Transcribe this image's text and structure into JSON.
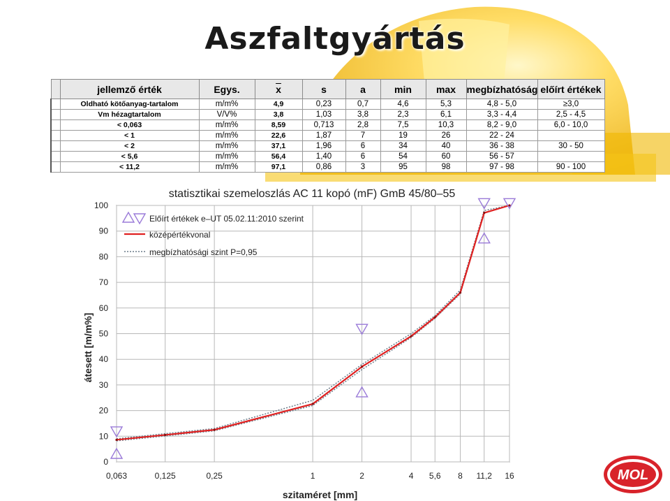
{
  "slide": {
    "title": "Aszfaltgyártás",
    "logo_text": "MOL"
  },
  "table": {
    "headers": [
      "jellemző érték",
      "Egys.",
      "x",
      "s",
      "a",
      "min",
      "max",
      "megbízhatóság",
      "előírt értékek"
    ],
    "rows": [
      [
        "Oldható kötőanyag-tartalom",
        "m/m%",
        "4,9",
        "0,23",
        "0,7",
        "4,6",
        "5,3",
        "4,8 - 5,0",
        "≥3,0"
      ],
      [
        "Vm hézagtartalom",
        "V/V%",
        "3,8",
        "1,03",
        "3,8",
        "2,3",
        "6,1",
        "3,3 - 4,4",
        "2,5 - 4,5"
      ],
      [
        "< 0,063",
        "m/m%",
        "8,59",
        "0,713",
        "2,8",
        "7,5",
        "10,3",
        "8,2 - 9,0",
        "6,0 - 10,0"
      ],
      [
        "< 1",
        "m/m%",
        "22,6",
        "1,87",
        "7",
        "19",
        "26",
        "22 - 24",
        ""
      ],
      [
        "< 2",
        "m/m%",
        "37,1",
        "1,96",
        "6",
        "34",
        "40",
        "36 - 38",
        "30 - 50"
      ],
      [
        "< 5,6",
        "m/m%",
        "56,4",
        "1,40",
        "6",
        "54",
        "60",
        "56 - 57",
        ""
      ],
      [
        "< 11,2",
        "m/m%",
        "97,1",
        "0,86",
        "3",
        "95",
        "98",
        "97 - 98",
        "90 - 100"
      ]
    ]
  },
  "chart_data": {
    "type": "line",
    "title": "statisztikai szemeloszlás AC 11 kopó (mF) GmB 45/80–55",
    "xlabel": "szitaméret [mm]",
    "ylabel": "átesett [m/m%]",
    "x_scale": "log",
    "x": [
      0.063,
      0.125,
      0.25,
      1,
      2,
      4,
      5.6,
      8,
      11.2,
      16
    ],
    "xticks": [
      "0,063",
      "0,125",
      "0,25",
      "1",
      "2",
      "4",
      "5,6",
      "8",
      "11,2",
      "16"
    ],
    "ylim": [
      0,
      100
    ],
    "yticks": [
      0,
      10,
      20,
      30,
      40,
      50,
      60,
      70,
      80,
      90,
      100
    ],
    "grid": true,
    "legend": "top-left",
    "colors": {
      "mean": "#e02020",
      "reliability": "#6a7a88",
      "spec": "#9a7ad8",
      "grid": "#b8b8b8"
    },
    "series": [
      {
        "name": "középértékvonal",
        "values": [
          8.6,
          10.5,
          12.5,
          22.6,
          37.1,
          49,
          56.4,
          66,
          97.1,
          100
        ]
      },
      {
        "name": "megbízhatósági szint P=0,95",
        "values_low": [
          8.2,
          10.1,
          12.1,
          22,
          36,
          48.5,
          56,
          65.5,
          97,
          100
        ],
        "values_high": [
          9.0,
          11.0,
          13.0,
          24,
          38,
          50,
          57,
          67,
          98,
          100
        ]
      }
    ],
    "spec_limits": {
      "name": "Előírt értékek e–UT 05.02.11:2010 szerint",
      "points": [
        {
          "x": 0.063,
          "lower": 3,
          "upper": 12
        },
        {
          "x": 2,
          "lower": 27,
          "upper": 52
        },
        {
          "x": 11.2,
          "lower": 87,
          "upper": 101
        },
        {
          "x": 16,
          "upper": 101
        }
      ]
    }
  }
}
